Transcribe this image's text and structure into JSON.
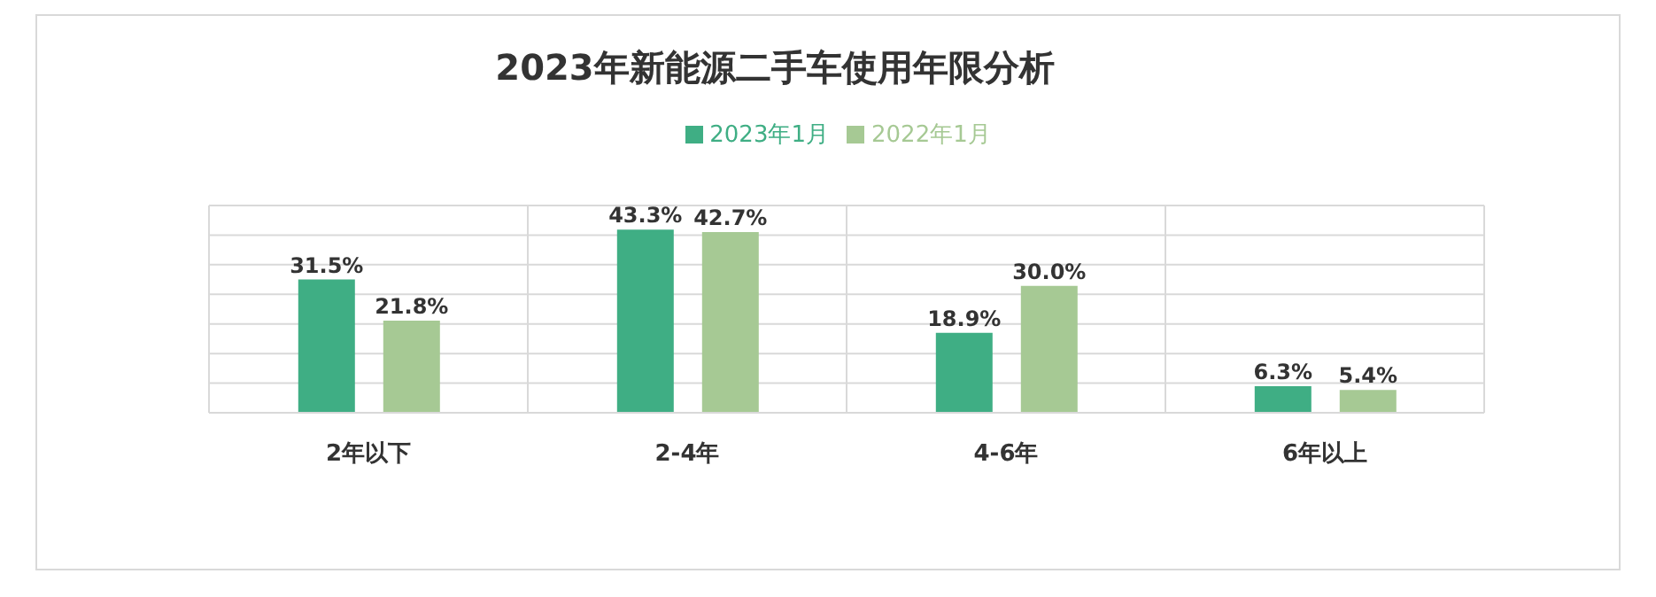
{
  "chart_data": {
    "type": "bar",
    "title": "2023年新能源二手车使用年限分析",
    "categories": [
      "2年以下",
      "2-4年",
      "4-6年",
      "6年以上"
    ],
    "series": [
      {
        "name": "2023年1月",
        "color": "#3fae84",
        "values": [
          31.5,
          43.3,
          18.9,
          6.3
        ],
        "value_labels": [
          "31.5%",
          "43.3%",
          "18.9%",
          "6.3%"
        ]
      },
      {
        "name": "2022年1月",
        "color": "#a6c994",
        "values": [
          21.8,
          42.7,
          30.0,
          5.4
        ],
        "value_labels": [
          "21.8%",
          "42.7%",
          "30.0%",
          "5.4%"
        ]
      }
    ],
    "tick_labels": "x",
    "grid": true,
    "legend": "top"
  }
}
